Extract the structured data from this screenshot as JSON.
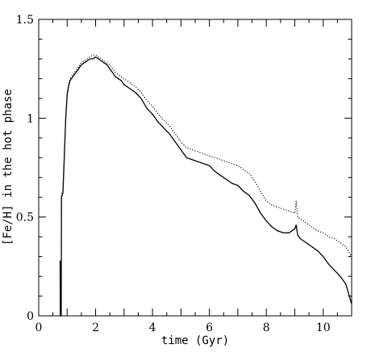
{
  "chart_data": {
    "type": "line",
    "title": "",
    "xlabel": "time (Gyr)",
    "ylabel": "[Fe/H] in the hot phase",
    "xlim": [
      0,
      11
    ],
    "ylim": [
      0,
      1.5
    ],
    "xticks": [
      0,
      2,
      4,
      6,
      8,
      10
    ],
    "xtick_labels": [
      "0",
      "2",
      "4",
      "6",
      "8",
      "10"
    ],
    "yticks": [
      0,
      0.5,
      1,
      1.5
    ],
    "ytick_labels": [
      "0",
      "0.5",
      "1",
      "1.5"
    ],
    "grid": false,
    "legend": "none",
    "series": [
      {
        "style": "solid",
        "color": "#000000",
        "x": [
          0.75,
          0.76,
          0.77,
          0.78,
          0.79,
          0.8,
          0.85,
          0.9,
          0.95,
          1.0,
          1.05,
          1.1,
          1.2,
          1.3,
          1.4,
          1.5,
          1.6,
          1.7,
          1.8,
          1.9,
          2.0,
          2.1,
          2.2,
          2.3,
          2.4,
          2.5,
          2.6,
          2.7,
          2.8,
          2.9,
          3.0,
          3.2,
          3.4,
          3.6,
          3.8,
          4.0,
          4.2,
          4.4,
          4.6,
          4.8,
          5.0,
          5.2,
          5.4,
          5.6,
          5.8,
          6.0,
          6.2,
          6.4,
          6.6,
          6.8,
          7.0,
          7.2,
          7.4,
          7.6,
          7.8,
          8.0,
          8.2,
          8.4,
          8.6,
          8.8,
          9.0,
          9.05,
          9.1,
          9.2,
          9.4,
          9.6,
          9.8,
          10.0,
          10.2,
          10.4,
          10.6,
          10.8,
          11.0
        ],
        "y": [
          0.28,
          0.0,
          0.0,
          0.0,
          0.0,
          0.6,
          0.62,
          0.8,
          1.0,
          1.12,
          1.16,
          1.19,
          1.21,
          1.23,
          1.25,
          1.27,
          1.28,
          1.29,
          1.3,
          1.3,
          1.31,
          1.3,
          1.29,
          1.28,
          1.27,
          1.25,
          1.23,
          1.21,
          1.2,
          1.19,
          1.17,
          1.15,
          1.13,
          1.1,
          1.05,
          1.02,
          0.98,
          0.95,
          0.92,
          0.88,
          0.84,
          0.8,
          0.79,
          0.78,
          0.77,
          0.76,
          0.73,
          0.71,
          0.69,
          0.67,
          0.66,
          0.63,
          0.61,
          0.57,
          0.52,
          0.48,
          0.45,
          0.43,
          0.42,
          0.42,
          0.44,
          0.46,
          0.41,
          0.39,
          0.37,
          0.35,
          0.33,
          0.3,
          0.26,
          0.23,
          0.2,
          0.16,
          0.06
        ]
      },
      {
        "style": "dotted",
        "color": "#000000",
        "x": [
          0.75,
          0.76,
          0.77,
          0.78,
          0.79,
          0.8,
          0.85,
          0.9,
          0.95,
          1.0,
          1.05,
          1.1,
          1.2,
          1.3,
          1.4,
          1.5,
          1.6,
          1.7,
          1.8,
          1.9,
          2.0,
          2.1,
          2.2,
          2.3,
          2.4,
          2.5,
          2.6,
          2.7,
          2.8,
          2.9,
          3.0,
          3.2,
          3.4,
          3.6,
          3.8,
          4.0,
          4.2,
          4.4,
          4.6,
          4.8,
          5.0,
          5.2,
          5.4,
          5.6,
          5.8,
          6.0,
          6.2,
          6.4,
          6.6,
          6.8,
          7.0,
          7.2,
          7.4,
          7.6,
          7.8,
          8.0,
          8.2,
          8.4,
          8.6,
          8.8,
          9.0,
          9.05,
          9.1,
          9.2,
          9.4,
          9.6,
          9.8,
          10.0,
          10.2,
          10.4,
          10.6,
          10.8,
          11.0
        ],
        "y": [
          0.28,
          0.0,
          0.0,
          0.0,
          0.0,
          0.62,
          0.63,
          0.82,
          1.0,
          1.13,
          1.17,
          1.2,
          1.22,
          1.24,
          1.26,
          1.28,
          1.29,
          1.3,
          1.31,
          1.32,
          1.32,
          1.31,
          1.3,
          1.29,
          1.28,
          1.27,
          1.25,
          1.23,
          1.22,
          1.21,
          1.2,
          1.18,
          1.16,
          1.13,
          1.09,
          1.06,
          1.02,
          0.99,
          0.96,
          0.92,
          0.88,
          0.85,
          0.84,
          0.83,
          0.82,
          0.81,
          0.8,
          0.79,
          0.78,
          0.77,
          0.76,
          0.74,
          0.72,
          0.68,
          0.63,
          0.58,
          0.56,
          0.55,
          0.54,
          0.53,
          0.52,
          0.58,
          0.5,
          0.49,
          0.47,
          0.45,
          0.43,
          0.42,
          0.4,
          0.39,
          0.37,
          0.35,
          0.3
        ]
      }
    ]
  }
}
